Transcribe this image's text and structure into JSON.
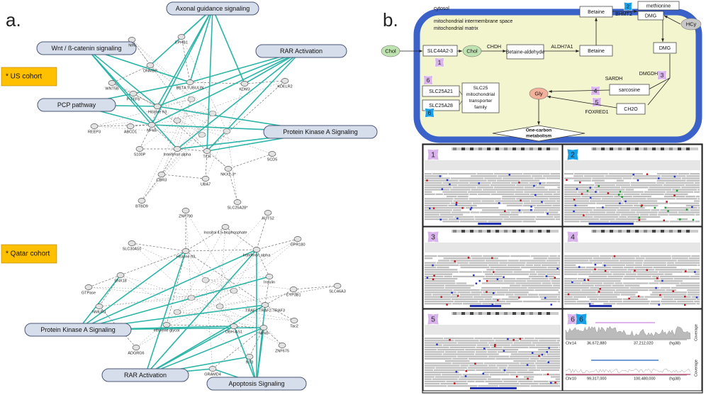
{
  "panel_a": {
    "label": "a.",
    "us_cohort": {
      "label": "* US cohort",
      "pathways": [
        "Axonal guidance signaling",
        "Wnt / ß-catenin signaling",
        "RAR Activation",
        "PCP pathway",
        "Protein Kinase A Signaling"
      ],
      "genes": [
        "NIN",
        "EPHB1",
        "BETA TUBULIN",
        "DNMBP",
        "WNT5B",
        "P-TEFb",
        "Histone h3",
        "KDM3",
        "KDELR2",
        "REEP3",
        "NFkB",
        "S100P",
        "Interferon alpha",
        "TCR",
        "SCD5",
        "CBR3",
        "UBA7",
        "NKX2-3*",
        "BTBD9",
        "SLC25A28*",
        "ABCD1"
      ]
    },
    "qatar_cohort": {
      "label": "* Qatar  cohort",
      "pathways": [
        "Protein Kinase A Signaling",
        "RAR Activation",
        "Apoptosis Signaling"
      ],
      "genes": [
        "ZNF790",
        "AUTS2",
        "Inositol 4,5-bisphosphate",
        "SLC30A10",
        "Histone h3",
        "GPR180",
        "Interferon alpha",
        "Insulin",
        "SNX18",
        "GTPase",
        "CYP3B1",
        "SLC46A3",
        "NMUR1",
        "TRAF1-TRAF2-TRAF3",
        "Tac2",
        "ethylene glycol",
        "DBH-AS1",
        "NFkB",
        "ADGRG6",
        "GRAMD4",
        "NT3",
        "ZNF675"
      ]
    }
  },
  "panel_b": {
    "label": "b.",
    "compartments": [
      "cytosol",
      "mitochondrial intermembrane space",
      "mitochondrial matrix"
    ],
    "metabolites": {
      "chol_out": "Chol",
      "chol_in": "Chol",
      "betaine_aldehyde": "Betaine-aldehyde",
      "betaine_in": "Betaine",
      "betaine_out": "Betaine",
      "methionine": "methionine",
      "dmg_out": "DMG",
      "hcy": "HCy",
      "dmg_in": "DMG",
      "sarcosine": "sarcosine",
      "gly": "Gly",
      "ch2o": "CH2O"
    },
    "enzymes": {
      "slc44a2_3": "SLC44A2-3",
      "chdh": "CHDH",
      "aldh7a1": "ALDH7A1",
      "bhmt2": "BHMT2",
      "dmgdh": "DMGDH",
      "sardh": "SARDH",
      "foxred1": "FOXRED1",
      "slc25a21": "SLC25A21",
      "slc25a28": "SLC25A28"
    },
    "transporter_family": [
      "SLC25",
      "mitochondrial",
      "transporter",
      "family"
    ],
    "one_carbon": [
      "One-carbon",
      "metabolism"
    ],
    "badges": {
      "slc44": "1",
      "bhmt2": "2",
      "dmgdh": "3",
      "sardh": "4",
      "foxred1": "5",
      "slc25a21": "6",
      "slc25a28": "6"
    },
    "igv": {
      "panels": [
        "1",
        "2",
        "3",
        "4",
        "5",
        "6"
      ],
      "tracks": [
        {
          "chr": "Chr14",
          "start": "36,672,880",
          "end": "37,212,020",
          "build": "(hg38)",
          "axis": "Coverage"
        },
        {
          "chr": "Chr10",
          "start": "99,317,000",
          "end": "100,480,000",
          "build": "(hg38)",
          "axis": "Coverage"
        }
      ]
    }
  }
}
